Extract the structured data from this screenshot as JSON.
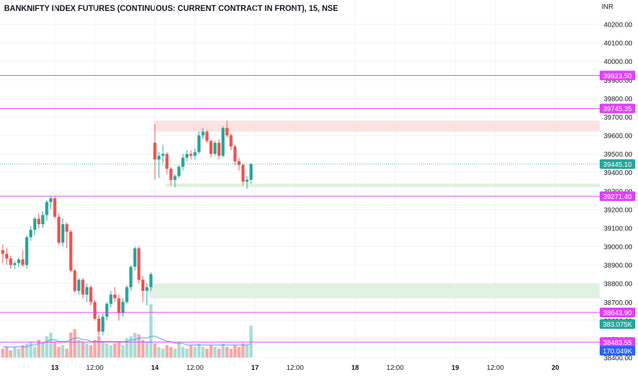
{
  "title": "BANKNIFTY INDEX FUTURES (CONTINUOUS: CURRENT CONTRACT IN FRONT), 15, NSE",
  "currency": "INR",
  "colors": {
    "up": "#26a69a",
    "down": "#ef5350",
    "up_volume": "#a9dcd5",
    "down_volume": "#f7a9a7",
    "level_line": "#e040fb",
    "level_tag": "#e040fb",
    "supply_zone": "#fde2e2",
    "demand_zone": "#dff1e0",
    "ma_line": "#6b8cff",
    "last_price_tag": "#26a69a",
    "volume_ma_tag": "#2962ff"
  },
  "chart_data": {
    "type": "candlestick",
    "ylim": [
      38400,
      40250
    ],
    "y_ticks": [
      "40200.00",
      "40100.00",
      "40000.00",
      "39900.00",
      "39800.00",
      "39700.00",
      "39600.00",
      "39500.00",
      "39400.00",
      "39300.00",
      "39200.00",
      "39100.00",
      "39000.00",
      "38900.00",
      "38800.00",
      "38700.00",
      "38600.00",
      "38500.00",
      "38400.00"
    ],
    "x_ticks": [
      {
        "label": "13",
        "bold": true,
        "bar": 13
      },
      {
        "label": "12:00",
        "bold": false,
        "bar": 23
      },
      {
        "label": "14",
        "bold": true,
        "bar": 38
      },
      {
        "label": "12:00",
        "bold": false,
        "bar": 48
      },
      {
        "label": "17",
        "bold": true,
        "bar": 63
      },
      {
        "label": "12:00",
        "bold": false,
        "bar": 73
      },
      {
        "label": "18",
        "bold": true,
        "bar": 88
      },
      {
        "label": "12:00",
        "bold": false,
        "bar": 98
      },
      {
        "label": "19",
        "bold": true,
        "bar": 113
      },
      {
        "label": "12:00",
        "bold": false,
        "bar": 123
      },
      {
        "label": "20",
        "bold": true,
        "bar": 138
      }
    ],
    "candles": [
      [
        38980,
        39010,
        38910,
        38960
      ],
      [
        38960,
        38990,
        38900,
        38935
      ],
      [
        38935,
        38950,
        38880,
        38900
      ],
      [
        38900,
        38920,
        38880,
        38910
      ],
      [
        38910,
        38940,
        38890,
        38930
      ],
      [
        38930,
        38980,
        38890,
        38900
      ],
      [
        38900,
        39060,
        38880,
        39050
      ],
      [
        39050,
        39110,
        39030,
        39090
      ],
      [
        39090,
        39160,
        39060,
        39150
      ],
      [
        39150,
        39180,
        39100,
        39120
      ],
      [
        39120,
        39190,
        39100,
        39170
      ],
      [
        39170,
        39250,
        39140,
        39240
      ],
      [
        39240,
        39271,
        39200,
        39260
      ],
      [
        39260,
        39271,
        39150,
        39160
      ],
      [
        39160,
        39180,
        39010,
        39020
      ],
      [
        39020,
        39150,
        39000,
        39120
      ],
      [
        39120,
        39130,
        38990,
        39080
      ],
      [
        39080,
        39090,
        38860,
        38870
      ],
      [
        38870,
        38880,
        38750,
        38760
      ],
      [
        38760,
        38830,
        38740,
        38820
      ],
      [
        38820,
        38830,
        38720,
        38740
      ],
      [
        38740,
        38800,
        38700,
        38780
      ],
      [
        38780,
        38790,
        38680,
        38700
      ],
      [
        38700,
        38710,
        38600,
        38610
      ],
      [
        38610,
        38630,
        38520,
        38540
      ],
      [
        38540,
        38640,
        38520,
        38620
      ],
      [
        38620,
        38700,
        38600,
        38690
      ],
      [
        38690,
        38760,
        38670,
        38740
      ],
      [
        38740,
        38780,
        38700,
        38720
      ],
      [
        38720,
        38740,
        38600,
        38640
      ],
      [
        38640,
        38720,
        38620,
        38700
      ],
      [
        38700,
        38790,
        38690,
        38780
      ],
      [
        38780,
        38900,
        38760,
        38890
      ],
      [
        38890,
        39000,
        38870,
        38990
      ],
      [
        38990,
        39000,
        38800,
        38820
      ],
      [
        38820,
        38840,
        38700,
        38760
      ],
      [
        38760,
        38800,
        38680,
        38780
      ],
      [
        38780,
        38860,
        38760,
        38850
      ],
      [
        39560,
        39660,
        39360,
        39470
      ],
      [
        39470,
        39510,
        39370,
        39490
      ],
      [
        39490,
        39550,
        39450,
        39500
      ],
      [
        39500,
        39510,
        39390,
        39420
      ],
      [
        39420,
        39430,
        39330,
        39360
      ],
      [
        39360,
        39390,
        39320,
        39380
      ],
      [
        39380,
        39440,
        39370,
        39430
      ],
      [
        39430,
        39500,
        39410,
        39480
      ],
      [
        39480,
        39520,
        39460,
        39500
      ],
      [
        39500,
        39520,
        39470,
        39490
      ],
      [
        39490,
        39530,
        39470,
        39510
      ],
      [
        39510,
        39620,
        39500,
        39600
      ],
      [
        39600,
        39640,
        39580,
        39620
      ],
      [
        39620,
        39630,
        39560,
        39570
      ],
      [
        39570,
        39580,
        39480,
        39500
      ],
      [
        39500,
        39570,
        39490,
        39560
      ],
      [
        39560,
        39580,
        39470,
        39490
      ],
      [
        39490,
        39650,
        39480,
        39640
      ],
      [
        39640,
        39680,
        39590,
        39600
      ],
      [
        39600,
        39610,
        39520,
        39540
      ],
      [
        39540,
        39550,
        39440,
        39460
      ],
      [
        39460,
        39480,
        39410,
        39440
      ],
      [
        39440,
        39450,
        39330,
        39350
      ],
      [
        39350,
        39380,
        39310,
        39360
      ],
      [
        39360,
        39450,
        39340,
        39445
      ]
    ],
    "volume": [
      5,
      6,
      4,
      6,
      5,
      7,
      8,
      9,
      6,
      10,
      8,
      12,
      14,
      9,
      6,
      7,
      5,
      14,
      16,
      10,
      9,
      8,
      7,
      10,
      12,
      9,
      8,
      7,
      8,
      9,
      7,
      11,
      12,
      14,
      13,
      10,
      9,
      30,
      8,
      6,
      5,
      7,
      6,
      5,
      9,
      6,
      5,
      7,
      6,
      8,
      6,
      5,
      7,
      6,
      5,
      8,
      6,
      5,
      7,
      6,
      8,
      7,
      18
    ],
    "volume_ma": [
      6,
      6,
      6,
      6,
      6,
      6,
      6,
      7,
      7,
      8,
      8,
      9,
      10,
      10,
      9,
      9,
      9,
      10,
      11,
      11,
      10,
      10,
      9,
      9,
      9,
      9,
      9,
      9,
      9,
      9,
      9,
      9,
      10,
      10,
      11,
      11,
      11,
      12,
      12,
      11,
      10,
      9,
      9,
      8,
      8,
      8,
      7,
      7,
      7,
      7,
      7,
      7,
      7,
      7,
      7,
      7,
      7,
      7,
      7,
      7,
      7,
      7,
      8
    ],
    "levels": [
      {
        "price": 39923.5,
        "label": "39923.50"
      },
      {
        "price": 39745.35,
        "label": "39745.35"
      },
      {
        "price": 39271.4,
        "label": "39271.40"
      },
      {
        "price": 38643.9,
        "label": "38643.90"
      },
      {
        "price": 38483.55,
        "label": "38483.55"
      }
    ],
    "zones": [
      {
        "type": "supply",
        "start_bar": 38,
        "end_bar": 150,
        "top": 39680,
        "bottom": 39620
      },
      {
        "type": "demand",
        "start_bar": 41,
        "end_bar": 150,
        "top": 39340,
        "bottom": 39320
      },
      {
        "type": "demand",
        "start_bar": 37,
        "end_bar": 150,
        "top": 38800,
        "bottom": 38720
      }
    ],
    "last_price": {
      "price": 39445.1,
      "label": "39445.10"
    },
    "volume_tag": "383.075K",
    "volume_ma_tag": "170.049K"
  }
}
